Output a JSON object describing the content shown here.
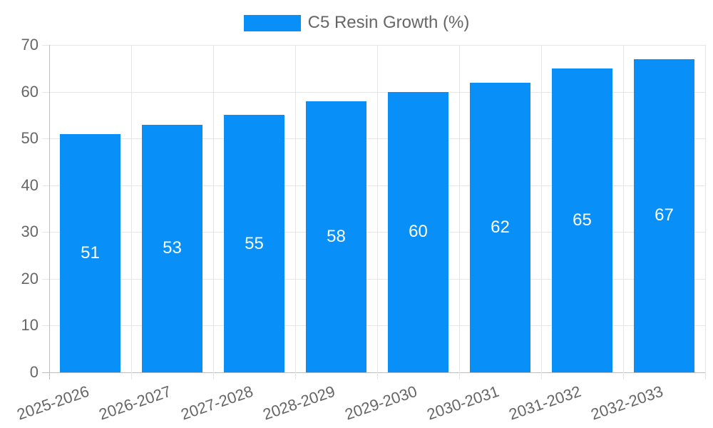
{
  "chart_data": {
    "type": "bar",
    "title": "C5 Resin Growth (%)",
    "legend": {
      "position": "top",
      "label": "C5 Resin Growth (%)",
      "swatch_color": "#0890f8"
    },
    "categories": [
      "2025-2026",
      "2026-2027",
      "2027-2028",
      "2028-2029",
      "2029-2030",
      "2030-2031",
      "2031-2032",
      "2032-2033"
    ],
    "series": [
      {
        "name": "C5 Resin Growth (%)",
        "color": "#0890f8",
        "values": [
          51,
          53,
          55,
          58,
          60,
          62,
          65,
          67
        ]
      }
    ],
    "xlabel": "",
    "ylabel": "",
    "ylim": [
      0,
      70
    ],
    "yticks": [
      0,
      10,
      20,
      30,
      40,
      50,
      60,
      70
    ],
    "grid": true,
    "x_label_rotation_deg": -19,
    "bar_value_label_color": "#ffffff",
    "axis_text_color": "#666666",
    "gridline_color": "#e6e6e6",
    "axis_edge_color": "#bdbdbd",
    "background_color": "#ffffff"
  }
}
